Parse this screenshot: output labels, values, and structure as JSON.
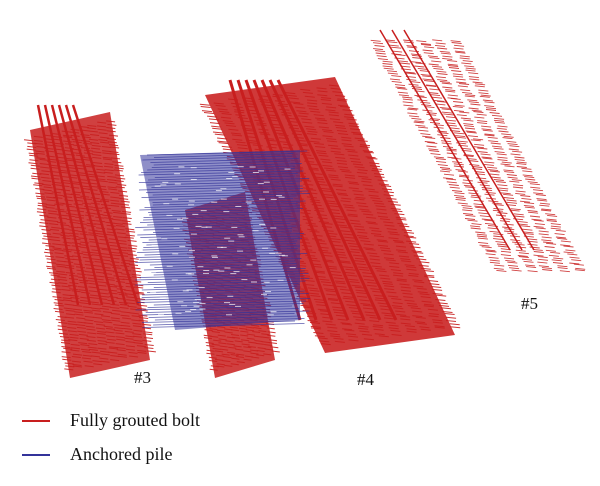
{
  "colors": {
    "bolt": "#c81e1e",
    "pile": "#33339a"
  },
  "legend": {
    "bolt": {
      "label": "Fully grouted bolt"
    },
    "pile": {
      "label": "Anchored pile"
    }
  },
  "tunnels": [
    {
      "label": "#3"
    },
    {
      "label": "#4"
    },
    {
      "label": "#5"
    }
  ]
}
